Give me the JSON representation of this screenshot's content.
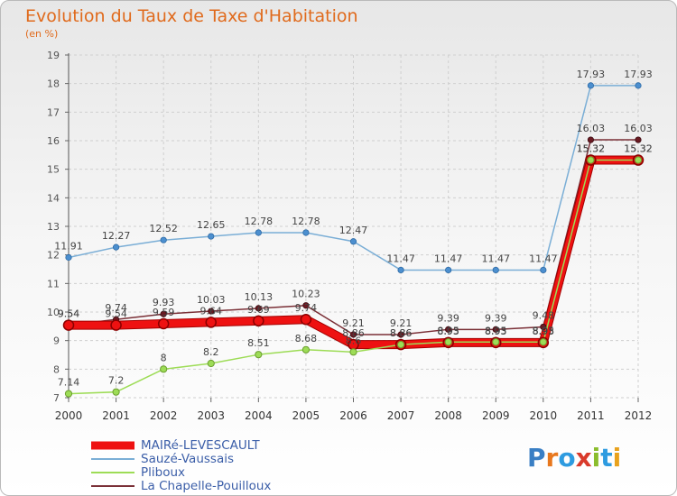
{
  "title": "Evolution du Taux de Taxe d'Habitation",
  "subtitle": "(en %)",
  "logo": {
    "text": "Proxiti",
    "letter_colors": [
      "#3a7fc4",
      "#e8781e",
      "#2e9be0",
      "#d93a2b",
      "#8bbd2d",
      "#2e9be0",
      "#e8a21e"
    ]
  },
  "chart_data": {
    "type": "line",
    "title": "Evolution du Taux de Taxe d'Habitation",
    "ylabel": "(en %)",
    "xlabel": "",
    "ylim": [
      7,
      19
    ],
    "yticks": [
      "7",
      "8",
      "9",
      "10",
      "11",
      "12",
      "13",
      "14",
      "15",
      "16",
      "17",
      "18",
      "19"
    ],
    "categories": [
      "2000",
      "2001",
      "2002",
      "2003",
      "2004",
      "2005",
      "2006",
      "2007",
      "2008",
      "2009",
      "2010",
      "2011",
      "2012"
    ],
    "series": [
      {
        "name": "MAIRé-LEVESCAULT",
        "color": "#ee1111",
        "labels": [
          "9.54",
          "9.54",
          "9.59",
          "9.64",
          "9.69",
          "9.74",
          "8.86",
          "8.86",
          "8.93",
          "8.93",
          "8.93",
          "15.32",
          "15.32"
        ],
        "values": [
          9.54,
          9.54,
          9.59,
          9.64,
          9.69,
          9.74,
          8.86,
          8.86,
          8.93,
          8.93,
          8.93,
          15.32,
          15.32
        ]
      },
      {
        "name": "Sauzé-Vaussais",
        "color": "#7aaed6",
        "labels": [
          "11.91",
          "12.27",
          "12.52",
          "12.65",
          "12.78",
          "12.78",
          "12.47",
          "11.47",
          "11.47",
          "11.47",
          "11.47",
          "17.93",
          "17.93"
        ],
        "values": [
          11.91,
          12.27,
          12.52,
          12.65,
          12.78,
          12.78,
          12.47,
          11.47,
          11.47,
          11.47,
          11.47,
          17.93,
          17.93
        ]
      },
      {
        "name": "Pliboux",
        "color": "#9ddc56",
        "labels": [
          "7.14",
          "7.2",
          "8",
          "8.2",
          "8.51",
          "8.68",
          "8.6",
          "8.86",
          "8.95",
          "8.95",
          "8.95",
          "15.32",
          "15.32"
        ],
        "values": [
          7.14,
          7.2,
          8,
          8.2,
          8.51,
          8.68,
          8.6,
          8.86,
          8.95,
          8.95,
          8.95,
          15.32,
          15.32
        ]
      },
      {
        "name": "La Chapelle-Pouilloux",
        "color": "#7a2f36",
        "labels": [
          "9.54",
          "9.74",
          "9.93",
          "10.03",
          "10.13",
          "10.23",
          "9.21",
          "9.21",
          "9.39",
          "9.39",
          "9.48",
          "16.03",
          "16.03"
        ],
        "values": [
          9.54,
          9.74,
          9.93,
          10.03,
          10.13,
          10.23,
          9.21,
          9.21,
          9.39,
          9.39,
          9.48,
          16.03,
          16.03
        ]
      }
    ],
    "legend": [
      "MAIRé-LEVESCAULT",
      "Sauzé-Vaussais",
      "Pliboux",
      "La Chapelle-Pouilloux"
    ],
    "grid": true,
    "legend_position": "bottom-left"
  }
}
